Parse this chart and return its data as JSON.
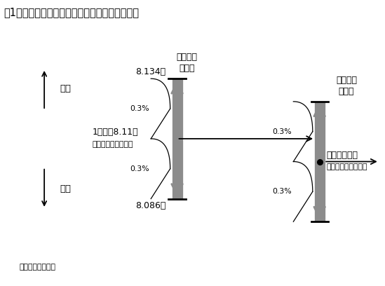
{
  "title": "図1　新しい制度における人民元レートの決め方",
  "title_fontsize": 10.5,
  "source_text": "（出所）筆者作成",
  "bg_color": "#ffffff",
  "text_color": "#000000",
  "arrow_gray": "#8c8c8c",
  "c1x": 0.46,
  "c1y": 0.515,
  "c2x": 0.83,
  "c2y": 0.435,
  "rh": 0.21,
  "label_8134": "8.134元",
  "label_8086": "8.086元",
  "label_midrate": "1ドル＝8.11元",
  "label_midrate_sub": "（一日目の中間値）",
  "label_close": "一日目の終値",
  "label_close_sub": "（二日目の中間値）",
  "label_pct": "0.3%",
  "label_yuan_up": "元安",
  "label_yuan_down": "元高",
  "label_day1_range": "一日目の\nレンジ",
  "label_day2_range": "二日目の\nレンジ"
}
